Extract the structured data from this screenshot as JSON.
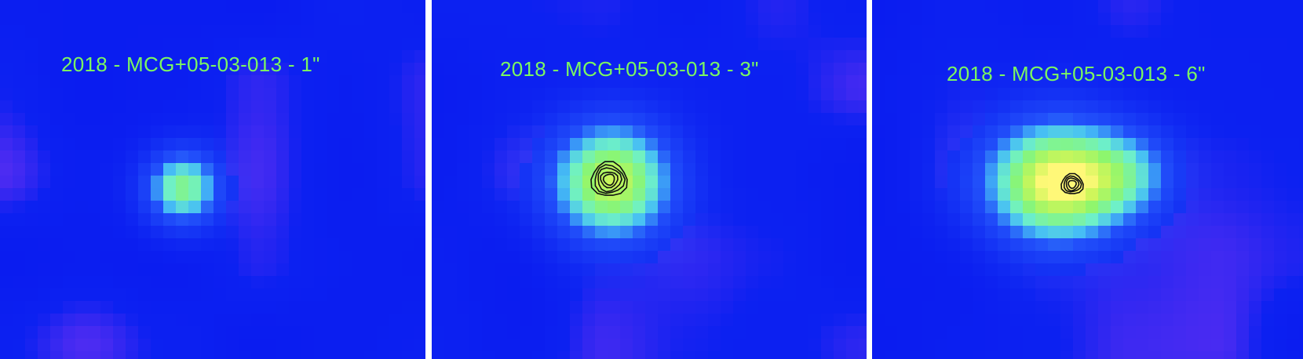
{
  "colors": {
    "background": "#0a1cf0",
    "label": "#7cf760",
    "contour": "#111111",
    "divider": "#ffffff"
  },
  "panels": [
    {
      "id": "panel-1",
      "label": "2018 - MCG+05-03-013 - 1\"",
      "has_contours": false
    },
    {
      "id": "panel-2",
      "label": "2018 - MCG+05-03-013 - 3\"",
      "has_contours": true
    },
    {
      "id": "panel-3",
      "label": "2018 - MCG+05-03-013 - 6\"",
      "has_contours": true
    }
  ]
}
